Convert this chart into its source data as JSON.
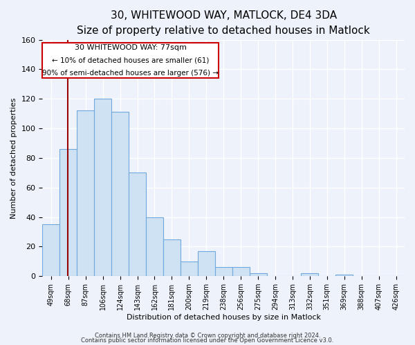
{
  "title": "30, WHITEWOOD WAY, MATLOCK, DE4 3DA",
  "subtitle": "Size of property relative to detached houses in Matlock",
  "xlabel": "Distribution of detached houses by size in Matlock",
  "ylabel": "Number of detached properties",
  "bin_labels": [
    "49sqm",
    "68sqm",
    "87sqm",
    "106sqm",
    "124sqm",
    "143sqm",
    "162sqm",
    "181sqm",
    "200sqm",
    "219sqm",
    "238sqm",
    "256sqm",
    "275sqm",
    "294sqm",
    "313sqm",
    "332sqm",
    "351sqm",
    "369sqm",
    "388sqm",
    "407sqm",
    "426sqm"
  ],
  "bar_values": [
    35,
    86,
    112,
    120,
    111,
    70,
    40,
    25,
    10,
    17,
    6,
    6,
    2,
    0,
    0,
    2,
    0,
    1,
    0,
    0,
    0
  ],
  "bar_color": "#cfe2f3",
  "bar_edgecolor": "#6fa8dc",
  "ylim": [
    0,
    160
  ],
  "yticks": [
    0,
    20,
    40,
    60,
    80,
    100,
    120,
    140,
    160
  ],
  "n_bins": 21,
  "vline_color": "#990000",
  "vline_bin_index": 1.47,
  "annotation_title": "30 WHITEWOOD WAY: 77sqm",
  "annotation_line1": "← 10% of detached houses are smaller (61)",
  "annotation_line2": "90% of semi-detached houses are larger (576) →",
  "annotation_box_facecolor": "#ffffff",
  "annotation_box_edgecolor": "#cc0000",
  "footer1": "Contains HM Land Registry data © Crown copyright and database right 2024.",
  "footer2": "Contains public sector information licensed under the Open Government Licence v3.0.",
  "bg_color": "#eef2fb",
  "plot_bg_color": "#eef2fb",
  "grid_color": "#ffffff",
  "title_fontsize": 11,
  "subtitle_fontsize": 9,
  "ylabel_fontsize": 8,
  "xlabel_fontsize": 8,
  "tick_fontsize": 8,
  "xtick_fontsize": 7
}
